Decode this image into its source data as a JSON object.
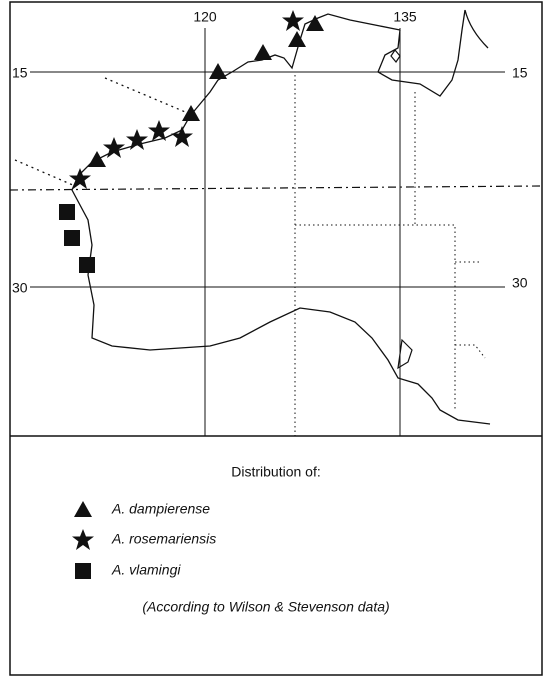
{
  "map": {
    "top_labels": [
      "120",
      "135"
    ],
    "left_labels": [
      "15",
      "30"
    ],
    "right_labels": [
      "15",
      "30"
    ]
  },
  "legend": {
    "title": "Distribution of:",
    "items": [
      "A. dampierense",
      "A. rosemariensis",
      "A. vlamingi"
    ],
    "note": "(According to Wilson & Stevenson data)"
  }
}
